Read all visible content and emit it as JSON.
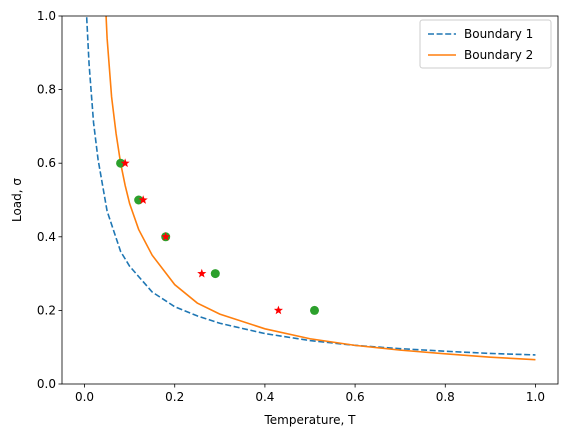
{
  "chart_data": {
    "type": "line",
    "xlabel": "Temperature, T",
    "ylabel": "Load, σ",
    "xlim": [
      -0.05,
      1.05
    ],
    "ylim": [
      0.0,
      1.0
    ],
    "x_ticks": [
      0.0,
      0.2,
      0.4,
      0.6,
      0.8,
      1.0
    ],
    "x_tick_labels": [
      "0.0",
      "0.2",
      "0.4",
      "0.6",
      "0.8",
      "1.0"
    ],
    "y_ticks": [
      0.0,
      0.2,
      0.4,
      0.6,
      0.8,
      1.0
    ],
    "y_tick_labels": [
      "0.0",
      "0.2",
      "0.4",
      "0.6",
      "0.8",
      "1.0"
    ],
    "grid": false,
    "legend_position": "top-right",
    "series": [
      {
        "name": "Boundary 1",
        "kind": "line",
        "style": "dashed",
        "color": "#1f77b4",
        "x": [
          0.0,
          0.005,
          0.01,
          0.02,
          0.03,
          0.05,
          0.08,
          0.1,
          0.15,
          0.2,
          0.25,
          0.3,
          0.4,
          0.5,
          0.6,
          0.7,
          0.8,
          0.9,
          1.0
        ],
        "y": [
          1.16,
          0.99,
          0.87,
          0.71,
          0.61,
          0.47,
          0.36,
          0.32,
          0.25,
          0.21,
          0.185,
          0.165,
          0.137,
          0.118,
          0.105,
          0.096,
          0.089,
          0.083,
          0.079
        ]
      },
      {
        "name": "Boundary 2",
        "kind": "line",
        "style": "solid",
        "color": "#ff7f0e",
        "x": [
          0.047,
          0.05,
          0.06,
          0.07,
          0.08,
          0.09,
          0.1,
          0.12,
          0.15,
          0.2,
          0.25,
          0.3,
          0.4,
          0.5,
          0.6,
          0.7,
          0.8,
          0.9,
          1.0
        ],
        "y": [
          1.02,
          0.94,
          0.78,
          0.68,
          0.6,
          0.54,
          0.49,
          0.42,
          0.35,
          0.27,
          0.22,
          0.19,
          0.15,
          0.123,
          0.105,
          0.092,
          0.082,
          0.073,
          0.066
        ]
      },
      {
        "kind": "scatter",
        "marker": "circle",
        "color": "#2ca02c",
        "x": [
          0.08,
          0.12,
          0.18,
          0.29,
          0.51
        ],
        "y": [
          0.6,
          0.5,
          0.4,
          0.3,
          0.2
        ]
      },
      {
        "kind": "scatter",
        "marker": "star",
        "color": "#ff0000",
        "x": [
          0.09,
          0.13,
          0.18,
          0.26,
          0.43
        ],
        "y": [
          0.6,
          0.5,
          0.4,
          0.3,
          0.2
        ]
      }
    ]
  }
}
